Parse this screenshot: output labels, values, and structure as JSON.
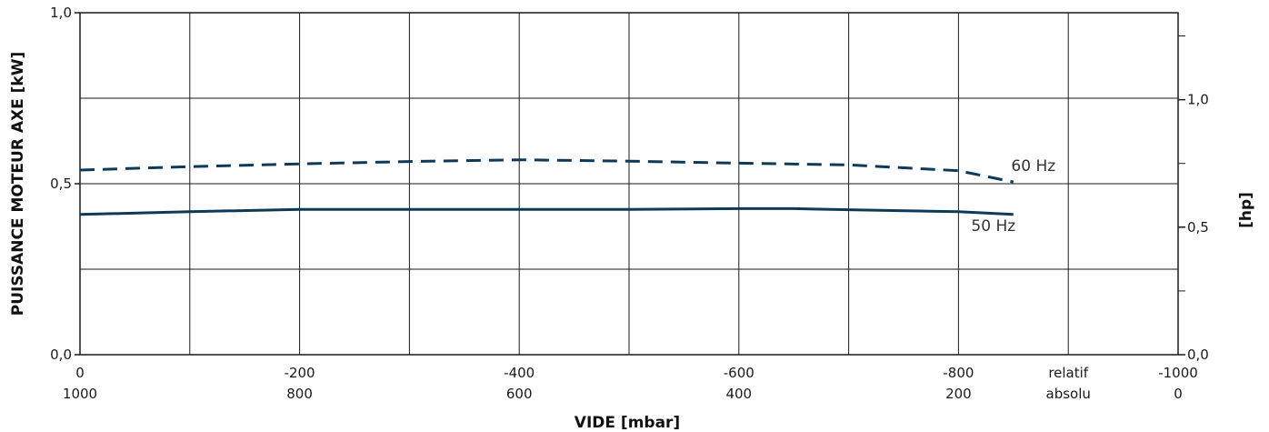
{
  "chart_data": {
    "type": "line",
    "xlabel": "VIDE  [mbar]",
    "ylabel": "PUISSANCE MOTEUR AXE  [kW]",
    "y2label": "[hp]",
    "xlim": [
      0,
      -1000
    ],
    "ylim": [
      0,
      1.0
    ],
    "y2lim": [
      0,
      1.341
    ],
    "grid": true,
    "x_ticks_relative": [
      "0",
      "-200",
      "-400",
      "-600",
      "-800",
      "-1000"
    ],
    "x_ticks_absolute": [
      "1000",
      "800",
      "600",
      "400",
      "200",
      "0"
    ],
    "x_tick_values": [
      0,
      -200,
      -400,
      -600,
      -800,
      -1000
    ],
    "x_row_label_relative": "relatif",
    "x_row_label_absolute": "absolu",
    "y_ticks": [
      "0,0",
      "0,5",
      "1,0"
    ],
    "y_tick_values": [
      0,
      0.5,
      1.0
    ],
    "y2_ticks": [
      "0,0",
      "0,5",
      "1,0"
    ],
    "y2_tick_values": [
      0,
      0.5,
      1.0
    ],
    "series": [
      {
        "name": "60 Hz",
        "style": "dashed",
        "color": "#0e3a5a",
        "x": [
          0,
          -100,
          -200,
          -300,
          -400,
          -500,
          -600,
          -700,
          -800,
          -850
        ],
        "y": [
          0.54,
          0.55,
          0.558,
          0.565,
          0.57,
          0.566,
          0.56,
          0.555,
          0.538,
          0.505
        ]
      },
      {
        "name": "50 Hz",
        "style": "solid",
        "color": "#0e3a5a",
        "x": [
          0,
          -100,
          -200,
          -300,
          -400,
          -500,
          -600,
          -650,
          -700,
          -800,
          -850
        ],
        "y": [
          0.41,
          0.418,
          0.425,
          0.425,
          0.425,
          0.425,
          0.427,
          0.427,
          0.424,
          0.418,
          0.41
        ]
      }
    ]
  }
}
